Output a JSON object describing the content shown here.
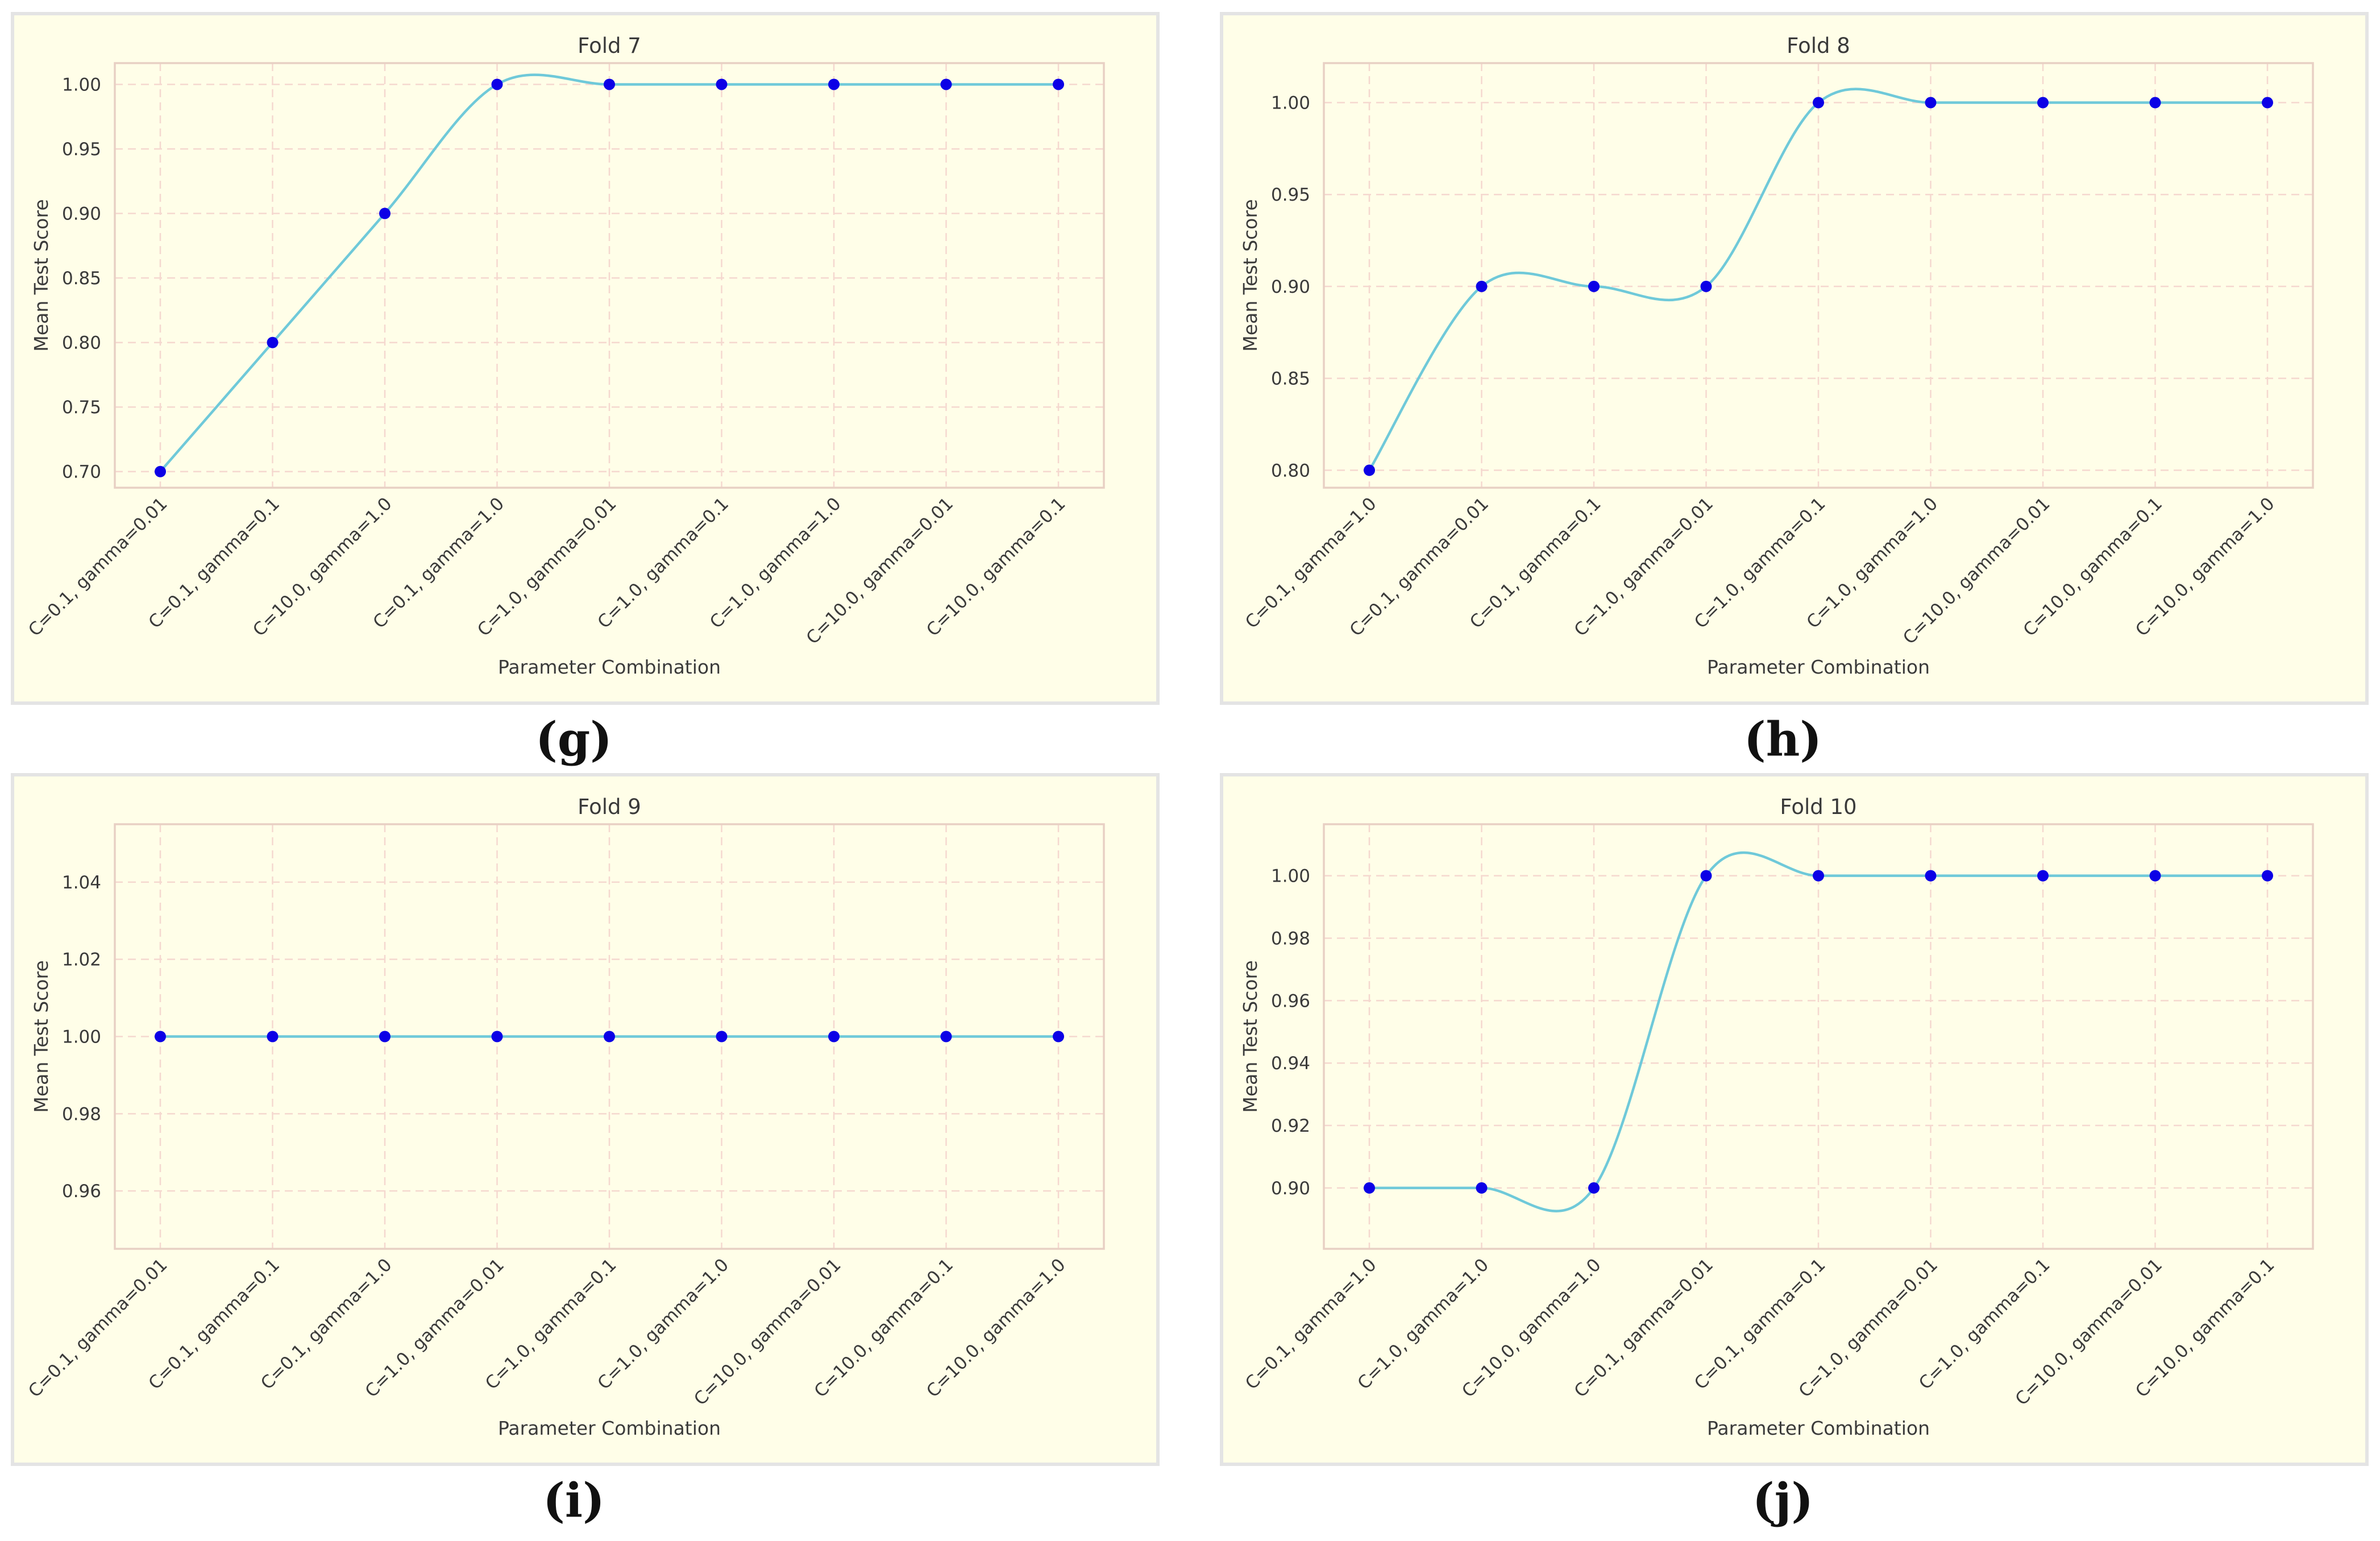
{
  "colors": {
    "panel_bg": "#fffee8",
    "panel_border": "#e4e4e4",
    "plot_frame": "#e8d0c4",
    "grid": "#f5d8cf",
    "line": "#6fc9d9",
    "marker": "#0c00e6",
    "text": "#3a3a3a"
  },
  "chart_data": [
    {
      "type": "line",
      "panel_label": "(g)",
      "title": "Fold 7",
      "xlabel": "Parameter Combination",
      "ylabel": "Mean Test Score",
      "categories": [
        "C=0.1, gamma=0.01",
        "C=0.1, gamma=0.1",
        "C=10.0, gamma=1.0",
        "C=0.1, gamma=1.0",
        "C=1.0, gamma=0.01",
        "C=1.0, gamma=0.1",
        "C=1.0, gamma=1.0",
        "C=10.0, gamma=0.01",
        "C=10.0, gamma=0.1"
      ],
      "values": [
        0.7,
        0.8,
        0.9,
        1.0,
        1.0,
        1.0,
        1.0,
        1.0,
        1.0
      ],
      "yticks": [
        "0.70",
        "0.75",
        "0.80",
        "0.85",
        "0.90",
        "0.95",
        "1.00"
      ],
      "ylim": [
        0.6875,
        1.0165
      ],
      "grid": true
    },
    {
      "type": "line",
      "panel_label": "(h)",
      "title": "Fold 8",
      "xlabel": "Parameter Combination",
      "ylabel": "Mean Test Score",
      "categories": [
        "C=0.1, gamma=1.0",
        "C=0.1, gamma=0.01",
        "C=0.1, gamma=0.1",
        "C=1.0, gamma=0.01",
        "C=1.0, gamma=0.1",
        "C=1.0, gamma=1.0",
        "C=10.0, gamma=0.01",
        "C=10.0, gamma=0.1",
        "C=10.0, gamma=1.0"
      ],
      "values": [
        0.8,
        0.9,
        0.9,
        0.9,
        1.0,
        1.0,
        1.0,
        1.0,
        1.0
      ],
      "yticks": [
        "0.80",
        "0.85",
        "0.90",
        "0.95",
        "1.00"
      ],
      "ylim": [
        0.7905,
        1.0215
      ],
      "grid": true
    },
    {
      "type": "line",
      "panel_label": "(i)",
      "title": "Fold 9",
      "xlabel": "Parameter Combination",
      "ylabel": "Mean Test Score",
      "categories": [
        "C=0.1, gamma=0.01",
        "C=0.1, gamma=0.1",
        "C=0.1, gamma=1.0",
        "C=1.0, gamma=0.01",
        "C=1.0, gamma=0.1",
        "C=1.0, gamma=1.0",
        "C=10.0, gamma=0.01",
        "C=10.0, gamma=0.1",
        "C=10.0, gamma=1.0"
      ],
      "values": [
        1.0,
        1.0,
        1.0,
        1.0,
        1.0,
        1.0,
        1.0,
        1.0,
        1.0
      ],
      "yticks": [
        "0.96",
        "0.98",
        "1.00",
        "1.02",
        "1.04"
      ],
      "ylim": [
        0.945,
        1.055
      ],
      "grid": true
    },
    {
      "type": "line",
      "panel_label": "(j)",
      "title": "Fold 10",
      "xlabel": "Parameter Combination",
      "ylabel": "Mean Test Score",
      "categories": [
        "C=0.1, gamma=1.0",
        "C=1.0, gamma=1.0",
        "C=10.0, gamma=1.0",
        "C=0.1, gamma=0.01",
        "C=0.1, gamma=0.1",
        "C=1.0, gamma=0.01",
        "C=1.0, gamma=0.1",
        "C=10.0, gamma=0.01",
        "C=10.0, gamma=0.1"
      ],
      "values": [
        0.9,
        0.9,
        0.9,
        1.0,
        1.0,
        1.0,
        1.0,
        1.0,
        1.0
      ],
      "yticks": [
        "0.90",
        "0.92",
        "0.94",
        "0.96",
        "0.98",
        "1.00"
      ],
      "ylim": [
        0.8805,
        1.0165
      ],
      "grid": true
    }
  ]
}
